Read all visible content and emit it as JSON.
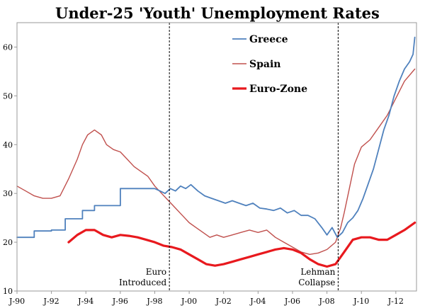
{
  "chart_data": {
    "type": "line",
    "title": "Under-25 'Youth' Unemployment Rates",
    "xlabel": "",
    "ylabel": "",
    "xlim": [
      1990.0,
      2013.2
    ],
    "ylim": [
      10,
      65
    ],
    "yticks": [
      10,
      20,
      30,
      40,
      50,
      60
    ],
    "xticks": [
      {
        "x": 1990,
        "label": "J-90"
      },
      {
        "x": 1992,
        "label": "J-92"
      },
      {
        "x": 1994,
        "label": "J-94"
      },
      {
        "x": 1996,
        "label": "J-96"
      },
      {
        "x": 1998,
        "label": "J-98"
      },
      {
        "x": 2000,
        "label": "J-00"
      },
      {
        "x": 2002,
        "label": "J-02"
      },
      {
        "x": 2004,
        "label": "J-04"
      },
      {
        "x": 2006,
        "label": "J-06"
      },
      {
        "x": 2008,
        "label": "J-08"
      },
      {
        "x": 2010,
        "label": "J-10"
      },
      {
        "x": 2012,
        "label": "J-12"
      }
    ],
    "grid": false,
    "legend": "top-right",
    "series": [
      {
        "name": "Greece",
        "color": "#4f81bd",
        "width": 1.8,
        "x": [
          1990.0,
          1991.0,
          1991.0,
          1992.0,
          1992.0,
          1992.8,
          1992.8,
          1993.8,
          1993.8,
          1994.5,
          1994.5,
          1996.0,
          1996.0,
          1998.0,
          1998.3,
          1998.6,
          1998.9,
          1999.2,
          1999.5,
          1999.8,
          2000.1,
          2000.5,
          2000.9,
          2001.3,
          2001.7,
          2002.1,
          2002.5,
          2002.9,
          2003.3,
          2003.7,
          2004.1,
          2004.5,
          2004.9,
          2005.3,
          2005.7,
          2006.1,
          2006.5,
          2006.9,
          2007.3,
          2007.7,
          2008.0,
          2008.3,
          2008.6,
          2008.9,
          2009.2,
          2009.5,
          2009.8,
          2010.1,
          2010.4,
          2010.7,
          2011.0,
          2011.3,
          2011.6,
          2011.9,
          2012.2,
          2012.5,
          2012.8,
          2013.0,
          2013.1
        ],
        "values": [
          21.0,
          21.0,
          22.3,
          22.3,
          22.5,
          22.5,
          24.8,
          24.8,
          26.5,
          26.5,
          27.5,
          27.5,
          31.0,
          31.0,
          30.5,
          30.0,
          31.0,
          30.5,
          31.5,
          31.0,
          31.8,
          30.5,
          29.5,
          29.0,
          28.5,
          28.0,
          28.5,
          28.0,
          27.5,
          28.0,
          27.0,
          26.8,
          26.5,
          27.0,
          26.0,
          26.5,
          25.5,
          25.5,
          24.8,
          23.0,
          21.5,
          23.0,
          21.0,
          22.0,
          24.0,
          25.0,
          26.5,
          29.0,
          32.0,
          35.0,
          39.0,
          43.0,
          46.0,
          50.0,
          53.0,
          55.5,
          57.0,
          58.5,
          62.0
        ]
      },
      {
        "name": "Spain",
        "color": "#c0504d",
        "width": 1.4,
        "x": [
          1990.0,
          1990.5,
          1991.0,
          1991.5,
          1992.0,
          1992.5,
          1993.0,
          1993.5,
          1993.8,
          1994.1,
          1994.5,
          1994.9,
          1995.2,
          1995.6,
          1996.0,
          1996.4,
          1996.8,
          1997.2,
          1997.6,
          1998.0,
          1998.4,
          1998.8,
          1999.2,
          1999.6,
          2000.0,
          2000.4,
          2000.8,
          2001.2,
          2001.6,
          2002.0,
          2002.5,
          2003.0,
          2003.5,
          2004.0,
          2004.5,
          2005.0,
          2005.5,
          2006.0,
          2006.5,
          2007.0,
          2007.5,
          2008.0,
          2008.5,
          2008.8,
          2009.0,
          2009.3,
          2009.6,
          2010.0,
          2010.5,
          2011.0,
          2011.5,
          2012.0,
          2012.5,
          2013.1
        ],
        "values": [
          31.5,
          30.5,
          29.5,
          29.0,
          29.0,
          29.5,
          33.0,
          37.0,
          40.0,
          42.0,
          43.0,
          42.0,
          40.0,
          39.0,
          38.5,
          37.0,
          35.5,
          34.5,
          33.5,
          31.5,
          30.0,
          28.5,
          27.0,
          25.5,
          24.0,
          23.0,
          22.0,
          21.0,
          21.5,
          21.0,
          21.5,
          22.0,
          22.5,
          22.0,
          22.5,
          21.0,
          20.0,
          19.0,
          18.0,
          17.5,
          17.8,
          18.5,
          20.0,
          23.0,
          26.0,
          31.0,
          36.0,
          39.5,
          41.0,
          43.5,
          46.0,
          49.5,
          53.0,
          55.5
        ]
      },
      {
        "name": "Euro-Zone",
        "color": "#e8191e",
        "width": 3.2,
        "x": [
          1993.0,
          1993.5,
          1994.0,
          1994.5,
          1995.0,
          1995.5,
          1996.0,
          1996.5,
          1997.0,
          1997.5,
          1998.0,
          1998.5,
          1999.0,
          1999.5,
          2000.0,
          2000.5,
          2001.0,
          2001.5,
          2002.0,
          2002.5,
          2003.0,
          2003.5,
          2004.0,
          2004.5,
          2005.0,
          2005.5,
          2006.0,
          2006.5,
          2007.0,
          2007.5,
          2008.0,
          2008.5,
          2009.0,
          2009.5,
          2010.0,
          2010.5,
          2011.0,
          2011.5,
          2012.0,
          2012.5,
          2013.1
        ],
        "values": [
          20.0,
          21.5,
          22.5,
          22.5,
          21.5,
          21.0,
          21.5,
          21.3,
          21.0,
          20.5,
          20.0,
          19.3,
          19.0,
          18.5,
          17.5,
          16.5,
          15.5,
          15.2,
          15.5,
          16.0,
          16.5,
          17.0,
          17.5,
          18.0,
          18.5,
          18.8,
          18.5,
          17.8,
          16.5,
          15.5,
          15.0,
          15.5,
          18.0,
          20.5,
          21.0,
          21.0,
          20.5,
          20.5,
          21.5,
          22.5,
          24.0
        ]
      }
    ],
    "annotations": [
      {
        "x": 1998.85,
        "lines": [
          "Euro",
          "Introduced"
        ]
      },
      {
        "x": 2008.65,
        "lines": [
          "Lehman",
          "Collapse"
        ]
      }
    ]
  }
}
